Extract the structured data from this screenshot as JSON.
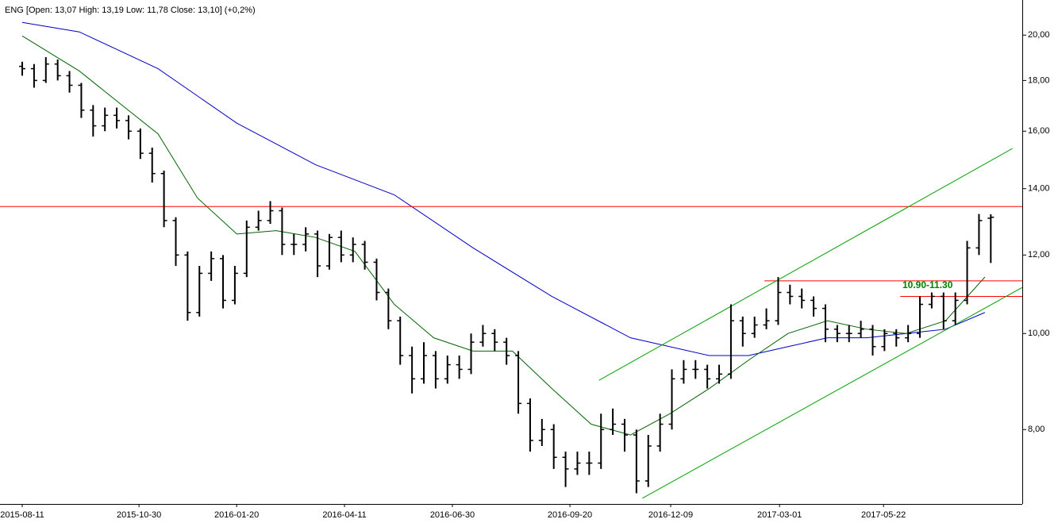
{
  "chart_data": {
    "type": "ohlc",
    "title": "ENG [Open: 13,07  High: 13,19  Low: 11,78  Close: 13,10] (+0,2%)",
    "color": "#000000",
    "log_y": true,
    "x": [
      0,
      6,
      12,
      18,
      24,
      30,
      36,
      42,
      48,
      54,
      60,
      66,
      72,
      78,
      84,
      90,
      96,
      102,
      108,
      114,
      120,
      126,
      132,
      138,
      144,
      150,
      156,
      162,
      168,
      174,
      180,
      186,
      192,
      198,
      204,
      210,
      216,
      222,
      228,
      234,
      240,
      246,
      252,
      258,
      264,
      270,
      276,
      282,
      288,
      294,
      300,
      306,
      312,
      318,
      324,
      330,
      336,
      342,
      348,
      354,
      360,
      366,
      372,
      378,
      384,
      390,
      396,
      402,
      408,
      414,
      420,
      426,
      432,
      438,
      444,
      450,
      456,
      462,
      468,
      474,
      480,
      486,
      492
    ],
    "open": [
      18.6,
      18.5,
      18.0,
      18.7,
      18.2,
      17.8,
      16.8,
      16.2,
      16.6,
      16.4,
      16.0,
      15.2,
      14.5,
      13.0,
      12.0,
      10.5,
      11.5,
      11.9,
      10.8,
      11.5,
      12.8,
      13.0,
      13.3,
      12.3,
      12.3,
      12.6,
      11.7,
      12.5,
      12.0,
      12.3,
      11.8,
      11.0,
      10.3,
      9.5,
      9.0,
      9.5,
      9.0,
      9.3,
      9.2,
      9.8,
      10.0,
      9.8,
      9.5,
      8.5,
      7.8,
      8.0,
      7.5,
      7.3,
      7.4,
      7.4,
      8.0,
      8.1,
      7.9,
      7.1,
      7.7,
      8.1,
      9.0,
      9.2,
      9.2,
      9.0,
      9.1,
      10.3,
      10.0,
      10.2,
      10.3,
      11.0,
      10.9,
      10.8,
      10.6,
      10.1,
      10.0,
      10.0,
      10.1,
      9.7,
      10.0,
      9.9,
      10.0,
      10.7,
      10.9,
      10.3,
      10.8,
      12.2,
      13.07
    ],
    "high": [
      18.8,
      18.7,
      19.0,
      18.9,
      18.4,
      17.9,
      17.0,
      16.9,
      16.9,
      16.6,
      16.1,
      15.4,
      14.6,
      13.1,
      12.1,
      11.7,
      12.1,
      12.0,
      11.7,
      13.0,
      13.3,
      13.6,
      13.4,
      12.6,
      12.8,
      12.7,
      12.6,
      12.7,
      12.5,
      12.4,
      11.9,
      11.1,
      10.4,
      9.7,
      9.8,
      9.6,
      9.5,
      9.5,
      10.0,
      10.2,
      10.1,
      9.9,
      9.6,
      8.6,
      8.2,
      8.1,
      7.6,
      7.6,
      7.6,
      8.3,
      8.4,
      8.2,
      8.0,
      7.9,
      8.3,
      9.2,
      9.4,
      9.4,
      9.3,
      9.3,
      10.7,
      10.4,
      10.4,
      10.6,
      11.4,
      11.2,
      11.1,
      10.9,
      10.7,
      10.2,
      10.2,
      10.3,
      10.2,
      10.1,
      10.1,
      10.2,
      10.9,
      11.0,
      11.0,
      11.0,
      12.4,
      13.2,
      13.19
    ],
    "low": [
      18.2,
      17.7,
      17.9,
      18.0,
      17.5,
      16.5,
      15.8,
      16.0,
      16.1,
      15.7,
      15.0,
      14.2,
      12.8,
      11.7,
      10.3,
      10.4,
      11.3,
      10.6,
      10.7,
      11.4,
      12.7,
      12.9,
      12.0,
      12.0,
      12.1,
      11.4,
      11.6,
      11.8,
      11.8,
      11.6,
      10.8,
      10.1,
      9.3,
      8.7,
      8.9,
      8.8,
      8.9,
      9.0,
      9.1,
      9.7,
      9.6,
      9.3,
      8.3,
      7.6,
      7.7,
      7.3,
      7.0,
      7.2,
      7.2,
      7.3,
      7.9,
      7.6,
      6.9,
      7.0,
      7.6,
      8.0,
      8.9,
      9.0,
      8.8,
      8.9,
      9.0,
      9.7,
      9.9,
      10.1,
      10.2,
      10.7,
      10.6,
      10.4,
      9.8,
      9.8,
      9.8,
      9.9,
      9.5,
      9.6,
      9.7,
      9.8,
      9.9,
      10.6,
      10.1,
      10.2,
      10.7,
      12.0,
      11.78
    ],
    "close": [
      18.5,
      18.0,
      18.7,
      18.2,
      17.8,
      16.8,
      16.2,
      16.6,
      16.4,
      16.0,
      15.2,
      14.5,
      13.0,
      12.0,
      10.5,
      11.5,
      11.9,
      10.8,
      11.5,
      12.8,
      13.0,
      13.3,
      12.3,
      12.3,
      12.6,
      11.7,
      12.5,
      12.0,
      12.3,
      11.8,
      11.0,
      10.3,
      9.5,
      9.0,
      9.5,
      9.0,
      9.3,
      9.2,
      9.8,
      10.0,
      9.8,
      9.5,
      8.5,
      7.8,
      8.0,
      7.5,
      7.3,
      7.4,
      7.4,
      8.0,
      8.1,
      7.9,
      7.1,
      7.7,
      8.1,
      9.0,
      9.2,
      9.2,
      9.0,
      9.1,
      10.3,
      10.0,
      10.2,
      10.3,
      11.0,
      10.9,
      10.8,
      10.6,
      10.1,
      10.0,
      10.0,
      10.1,
      9.7,
      10.0,
      9.9,
      10.0,
      10.7,
      10.9,
      10.3,
      10.8,
      12.2,
      13.0,
      13.1
    ],
    "overlays": [
      {
        "color": "#0000c8",
        "x": [
          0,
          29,
          69,
          109,
          149,
          189,
          229,
          269,
          309,
          349,
          369,
          389,
          409,
          429,
          449,
          469,
          489
        ],
        "values": [
          20.6,
          20.15,
          18.5,
          16.3,
          14.8,
          13.8,
          12.2,
          10.9,
          9.9,
          9.5,
          9.5,
          9.7,
          9.9,
          9.9,
          10.0,
          10.1,
          10.5
        ]
      },
      {
        "color": "#006400",
        "x": [
          0,
          29,
          49,
          69,
          89,
          109,
          129,
          149,
          169,
          189,
          209,
          229,
          249,
          269,
          289,
          309,
          329,
          349,
          369,
          389,
          409,
          429,
          449,
          469,
          489
        ],
        "values": [
          19.96,
          18.4,
          17.1,
          15.9,
          13.7,
          12.6,
          12.7,
          12.5,
          12.1,
          10.7,
          9.9,
          9.6,
          9.6,
          8.8,
          8.1,
          7.9,
          8.3,
          8.8,
          9.4,
          10.0,
          10.3,
          10.1,
          10.0,
          10.3,
          11.4
        ]
      },
      {
        "color": "#ff0000",
        "x": [
          -11.3,
          508
        ],
        "values": [
          13.43,
          13.43
        ]
      },
      {
        "color": "#ff0000",
        "x": [
          377,
          508
        ],
        "values": [
          11.3,
          11.3
        ]
      },
      {
        "color": "#ff0000",
        "x": [
          446,
          508
        ],
        "values": [
          10.9,
          10.9
        ]
      },
      {
        "color": "#00a000",
        "x": [
          293,
          503
        ],
        "values": [
          8.97,
          15.37
        ]
      },
      {
        "color": "#00a000",
        "x": [
          315,
          508
        ],
        "values": [
          6.82,
          11.13
        ]
      }
    ],
    "annotation": "10.90-11.30",
    "xlim": [
      -11.3,
      508
    ],
    "ylim": [
      6.73,
      21.7
    ],
    "xticks": [
      {
        "value": 0,
        "label": "2015-08-11"
      },
      {
        "value": 59.3,
        "label": "2015-10-30"
      },
      {
        "value": 108.9,
        "label": "2016-01-20"
      },
      {
        "value": 163.7,
        "label": "2016-04-11"
      },
      {
        "value": 218.5,
        "label": "2016-06-30"
      },
      {
        "value": 278.2,
        "label": "2016-09-20"
      },
      {
        "value": 329.4,
        "label": "2016-12-09"
      },
      {
        "value": 384.7,
        "label": "2017-03-01"
      },
      {
        "value": 437.5,
        "label": "2017-05-22"
      }
    ],
    "yticks": [
      {
        "value": 8,
        "label": "8,00"
      },
      {
        "value": 10,
        "label": "10,00"
      },
      {
        "value": 12,
        "label": "12,00"
      },
      {
        "value": 14,
        "label": "14,00"
      },
      {
        "value": 16,
        "label": "16,00"
      },
      {
        "value": 18,
        "label": "18,00"
      },
      {
        "value": 20,
        "label": "20,00"
      }
    ]
  }
}
